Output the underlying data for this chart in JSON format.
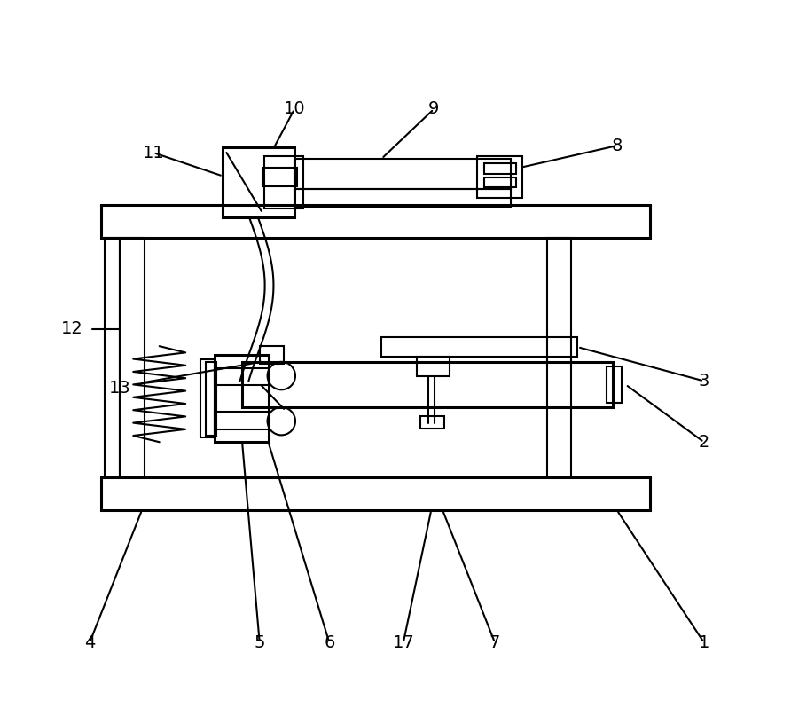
{
  "bg_color": "#ffffff",
  "line_color": "#000000",
  "lw": 1.5,
  "lw2": 2.2,
  "fig_width": 8.92,
  "fig_height": 7.98
}
